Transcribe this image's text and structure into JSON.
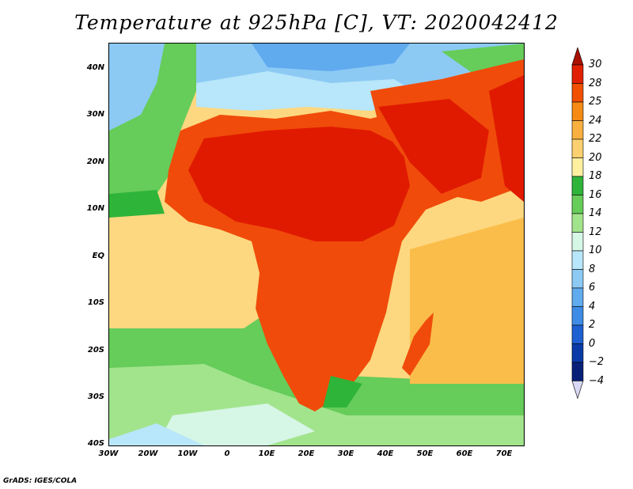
{
  "title": "Temperature at 925hPa [C], VT: 2020042412",
  "footer": "GrADS: IGES/COLA",
  "map": {
    "lat_labels": [
      "40N",
      "30N",
      "20N",
      "10N",
      "EQ",
      "10S",
      "20S",
      "30S",
      "40S"
    ],
    "lon_labels": [
      "30W",
      "20W",
      "10W",
      "0",
      "10E",
      "20E",
      "30E",
      "40E",
      "50E",
      "60E",
      "70E"
    ],
    "colors": {
      "hottest": "#e01a00",
      "hot": "#f04b0a",
      "warm": "#f98a1a",
      "mild": "#fbbd4a",
      "tropical_ocean": "#fdd880",
      "cool_ocean": "#7ad66a",
      "cold_ocean": "#3fba4a",
      "south_cold": "#c8f0f8",
      "mediterranean": "#9ed8f5",
      "europe": "#5aa8e8",
      "land_green": "#5cc850"
    }
  },
  "colorbar": {
    "labels": [
      "30",
      "28",
      "25",
      "24",
      "22",
      "20",
      "18",
      "16",
      "14",
      "12",
      "10",
      "8",
      "6",
      "4",
      "2",
      "0",
      "−2",
      "−4"
    ],
    "colors": [
      "#a81000",
      "#e02000",
      "#f05000",
      "#f58a14",
      "#f8b040",
      "#fcd070",
      "#fff0a0",
      "#2fb43a",
      "#66cc5a",
      "#a2e48c",
      "#d6f6e6",
      "#b8e6fa",
      "#8ccaf4",
      "#60aaee",
      "#3e8ce6",
      "#1e60d2",
      "#0a3aa8",
      "#082078",
      "#d8d8f4"
    ]
  }
}
